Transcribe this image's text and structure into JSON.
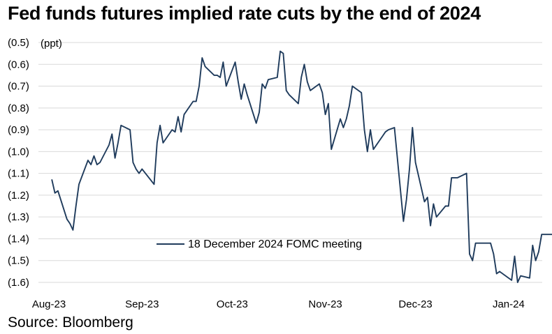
{
  "chart_data": {
    "type": "line",
    "title": "Fed funds futures implied rate cuts by the end of 2024",
    "ylabel": "(ppt)",
    "ylim": [
      -1.6,
      -0.5
    ],
    "y_ticks": [
      -0.5,
      -0.6,
      -0.7,
      -0.8,
      -0.9,
      -1.0,
      -1.1,
      -1.2,
      -1.3,
      -1.4,
      -1.5,
      -1.6
    ],
    "y_tick_labels": [
      "(0.5)",
      "(0.6)",
      "(0.7)",
      "(0.8)",
      "(0.9)",
      "(1.0)",
      "(1.1)",
      "(1.2)",
      "(1.3)",
      "(1.4)",
      "(1.5)",
      "(1.6)"
    ],
    "x_tick_labels": [
      "Aug-23",
      "Sep-23",
      "Oct-23",
      "Nov-23",
      "Dec-23",
      "Jan-24"
    ],
    "grid": "horizontal",
    "legend_position": "bottom-center",
    "line_color": "#1f3b5c",
    "series": [
      {
        "name": "18 December 2024 FOMC meeting",
        "x": [
          "2023-08-02",
          "2023-08-03",
          "2023-08-04",
          "2023-08-07",
          "2023-08-08",
          "2023-08-09",
          "2023-08-10",
          "2023-08-11",
          "2023-08-14",
          "2023-08-15",
          "2023-08-16",
          "2023-08-17",
          "2023-08-18",
          "2023-08-21",
          "2023-08-22",
          "2023-08-23",
          "2023-08-24",
          "2023-08-25",
          "2023-08-28",
          "2023-08-29",
          "2023-08-30",
          "2023-08-31",
          "2023-09-01",
          "2023-09-05",
          "2023-09-06",
          "2023-09-07",
          "2023-09-08",
          "2023-09-11",
          "2023-09-12",
          "2023-09-13",
          "2023-09-14",
          "2023-09-15",
          "2023-09-18",
          "2023-09-19",
          "2023-09-20",
          "2023-09-21",
          "2023-09-22",
          "2023-09-25",
          "2023-09-26",
          "2023-09-27",
          "2023-09-28",
          "2023-09-29",
          "2023-10-02",
          "2023-10-03",
          "2023-10-04",
          "2023-10-05",
          "2023-10-06",
          "2023-10-09",
          "2023-10-10",
          "2023-10-11",
          "2023-10-12",
          "2023-10-13",
          "2023-10-16",
          "2023-10-17",
          "2023-10-18",
          "2023-10-19",
          "2023-10-20",
          "2023-10-23",
          "2023-10-24",
          "2023-10-25",
          "2023-10-26",
          "2023-10-27",
          "2023-10-30",
          "2023-10-31",
          "2023-11-01",
          "2023-11-02",
          "2023-11-03",
          "2023-11-06",
          "2023-11-07",
          "2023-11-08",
          "2023-11-09",
          "2023-11-10",
          "2023-11-13",
          "2023-11-14",
          "2023-11-15",
          "2023-11-16",
          "2023-11-17",
          "2023-11-20",
          "2023-11-21",
          "2023-11-22",
          "2023-11-24",
          "2023-11-27",
          "2023-11-28",
          "2023-11-29",
          "2023-11-30",
          "2023-12-01",
          "2023-12-04",
          "2023-12-05",
          "2023-12-06",
          "2023-12-07",
          "2023-12-08",
          "2023-12-11",
          "2023-12-12",
          "2023-12-13",
          "2023-12-14",
          "2023-12-15",
          "2023-12-18",
          "2023-12-19",
          "2023-12-20",
          "2023-12-21",
          "2023-12-22",
          "2023-12-26",
          "2023-12-27",
          "2023-12-28",
          "2023-12-29",
          "2024-01-02",
          "2024-01-03",
          "2024-01-04",
          "2024-01-05",
          "2024-01-08",
          "2024-01-09",
          "2024-01-10",
          "2024-01-11",
          "2024-01-12",
          "2024-01-16",
          "2024-01-17"
        ],
        "values": [
          -1.13,
          -1.19,
          -1.18,
          -1.31,
          -1.33,
          -1.36,
          -1.25,
          -1.15,
          -1.04,
          -1.06,
          -1.02,
          -1.06,
          -1.05,
          -0.97,
          -0.92,
          -1.03,
          -0.96,
          -0.88,
          -0.9,
          -1.05,
          -1.08,
          -1.1,
          -1.08,
          -1.15,
          -0.96,
          -0.88,
          -0.96,
          -0.9,
          -0.91,
          -0.84,
          -0.91,
          -0.83,
          -0.77,
          -0.77,
          -0.7,
          -0.57,
          -0.61,
          -0.65,
          -0.65,
          -0.66,
          -0.59,
          -0.7,
          -0.59,
          -0.68,
          -0.76,
          -0.69,
          -0.74,
          -0.87,
          -0.82,
          -0.69,
          -0.71,
          -0.67,
          -0.66,
          -0.54,
          -0.55,
          -0.72,
          -0.74,
          -0.78,
          -0.66,
          -0.6,
          -0.68,
          -0.72,
          -0.69,
          -0.73,
          -0.83,
          -0.78,
          -0.99,
          -0.85,
          -0.89,
          -0.85,
          -0.79,
          -0.7,
          -0.73,
          -0.9,
          -1.0,
          -0.9,
          -0.99,
          -0.93,
          -0.91,
          -0.9,
          -0.89,
          -1.32,
          -1.22,
          -1.08,
          -0.89,
          -1.05,
          -1.23,
          -1.21,
          -1.34,
          -1.24,
          -1.3,
          -1.25,
          -1.25,
          -1.12,
          -1.12,
          -1.12,
          -1.1,
          -1.47,
          -1.5,
          -1.42,
          -1.42,
          -1.42,
          -1.47,
          -1.56,
          -1.55,
          -1.59,
          -1.48,
          -1.6,
          -1.57,
          -1.58,
          -1.43,
          -1.5,
          -1.46,
          -1.38,
          -1.38,
          -1.37
        ]
      }
    ]
  },
  "source": "Source: Bloomberg"
}
